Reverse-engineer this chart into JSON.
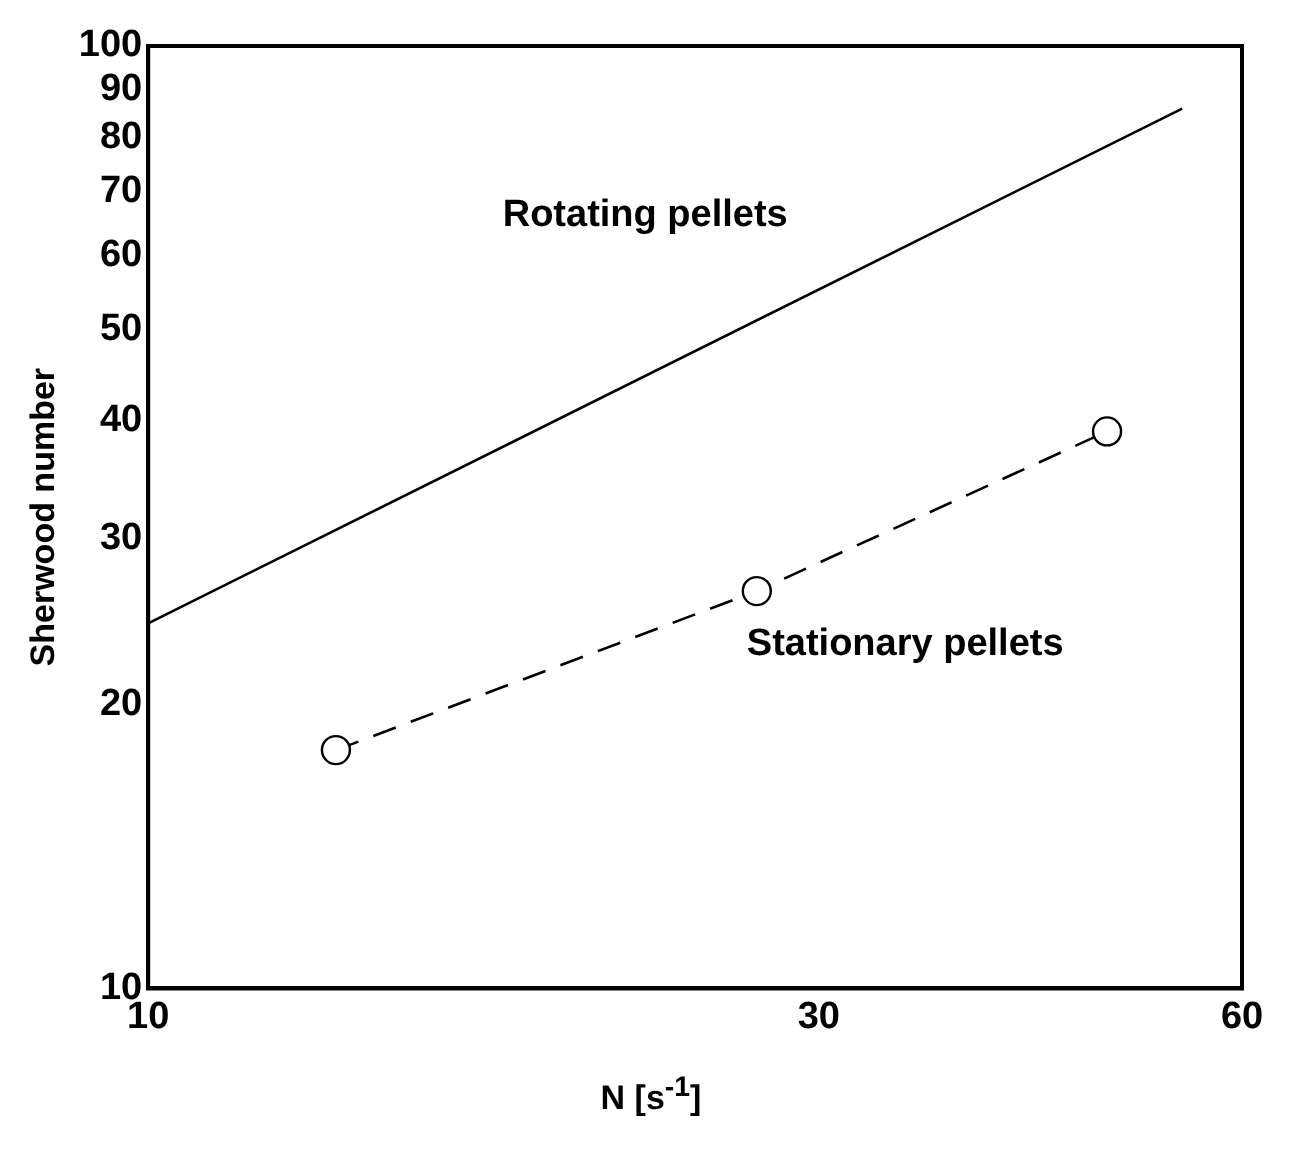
{
  "chart_data": {
    "type": "line",
    "xlabel": "N [s$^{-1}$]",
    "ylabel": "Sherwood number",
    "log": "xy",
    "xlim": [
      10,
      60
    ],
    "xticks": [
      10,
      30,
      60
    ],
    "ylim": [
      10,
      100
    ],
    "yticks": [
      10,
      20,
      30,
      40,
      50,
      60,
      70,
      80,
      90,
      100
    ],
    "grid": false,
    "legend": false,
    "series": [
      {
        "name": "Rotating pellets",
        "color": "#000000",
        "x": [
          10,
          54.4
        ],
        "values": [
          24.4,
          85.8
        ],
        "marker": "none",
        "line_style": "solid"
      },
      {
        "name": "Stationary pellets",
        "color": "#000000",
        "x": [
          13.6,
          27.1,
          48.1
        ],
        "values": [
          17.9,
          26.4,
          39.0
        ],
        "marker": "circle",
        "line_style": "dashed"
      }
    ]
  }
}
